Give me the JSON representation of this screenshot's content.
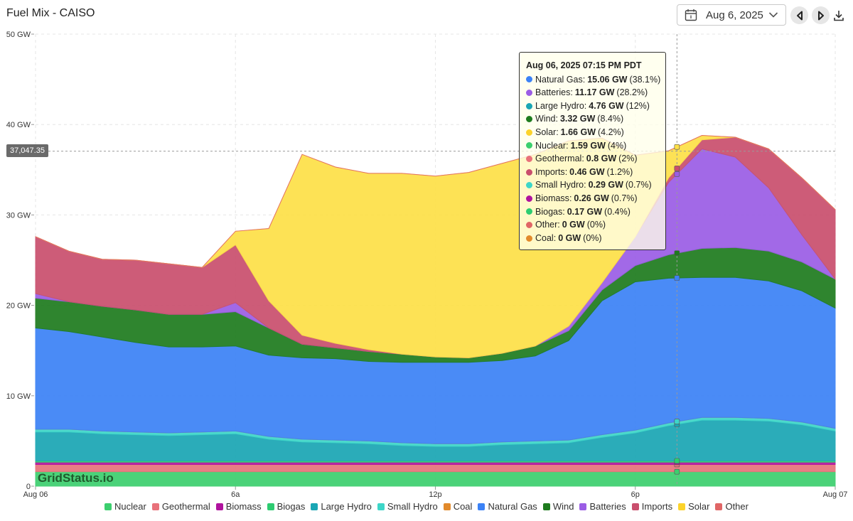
{
  "header": {
    "title": "Fuel Mix - CAISO",
    "date": "Aug 6, 2025"
  },
  "watermark": "GridStatus.io",
  "crosshair_value": "37,047.35",
  "chart_data": {
    "type": "area",
    "stacked": true,
    "title": "Fuel Mix - CAISO",
    "ylabel": "GW",
    "ylim": [
      0,
      50
    ],
    "yticks": [
      0,
      10,
      20,
      30,
      40,
      50
    ],
    "ytick_labels": [
      "0",
      "10 GW",
      "20 GW",
      "30 GW",
      "40 GW",
      "50 GW"
    ],
    "xlim": [
      0,
      24
    ],
    "xticks": [
      0,
      6,
      12,
      18,
      24
    ],
    "xtick_labels": [
      "Aug 06",
      "6a",
      "12p",
      "6p",
      "Aug 07"
    ],
    "x": [
      0,
      1,
      2,
      3,
      4,
      5,
      6,
      7,
      8,
      9,
      10,
      11,
      12,
      13,
      14,
      15,
      16,
      17,
      18,
      19,
      20,
      21,
      22,
      23,
      24
    ],
    "series": [
      {
        "name": "Nuclear",
        "color": "#3ccf6e",
        "values": [
          1.6,
          1.6,
          1.6,
          1.6,
          1.6,
          1.6,
          1.6,
          1.6,
          1.6,
          1.6,
          1.6,
          1.6,
          1.6,
          1.6,
          1.6,
          1.6,
          1.6,
          1.6,
          1.6,
          1.6,
          1.6,
          1.6,
          1.6,
          1.6,
          1.6
        ]
      },
      {
        "name": "Geothermal",
        "color": "#e8717a",
        "values": [
          0.8,
          0.8,
          0.8,
          0.8,
          0.8,
          0.8,
          0.8,
          0.8,
          0.8,
          0.8,
          0.8,
          0.8,
          0.8,
          0.8,
          0.8,
          0.8,
          0.8,
          0.8,
          0.8,
          0.8,
          0.8,
          0.8,
          0.8,
          0.8,
          0.8
        ]
      },
      {
        "name": "Biomass",
        "color": "#b0139e",
        "values": [
          0.25,
          0.25,
          0.25,
          0.25,
          0.25,
          0.25,
          0.25,
          0.25,
          0.25,
          0.25,
          0.25,
          0.25,
          0.25,
          0.25,
          0.25,
          0.25,
          0.25,
          0.25,
          0.25,
          0.25,
          0.25,
          0.25,
          0.25,
          0.25,
          0.25
        ]
      },
      {
        "name": "Biogas",
        "color": "#2ecc71",
        "values": [
          0.15,
          0.15,
          0.15,
          0.15,
          0.15,
          0.15,
          0.15,
          0.15,
          0.15,
          0.15,
          0.15,
          0.15,
          0.15,
          0.15,
          0.15,
          0.15,
          0.15,
          0.15,
          0.15,
          0.15,
          0.15,
          0.15,
          0.15,
          0.15,
          0.15
        ]
      },
      {
        "name": "Large Hydro",
        "color": "#1aa6b4",
        "values": [
          3.2,
          3.2,
          3.0,
          2.9,
          2.8,
          2.9,
          3.0,
          2.4,
          2.1,
          2.0,
          1.9,
          1.7,
          1.6,
          1.6,
          1.8,
          1.9,
          2.0,
          2.6,
          3.1,
          3.9,
          4.5,
          4.5,
          4.4,
          4.0,
          3.3
        ]
      },
      {
        "name": "Small Hydro",
        "color": "#3dd6c8",
        "values": [
          0.3,
          0.3,
          0.3,
          0.3,
          0.3,
          0.3,
          0.3,
          0.3,
          0.3,
          0.3,
          0.3,
          0.3,
          0.3,
          0.3,
          0.3,
          0.3,
          0.3,
          0.3,
          0.3,
          0.3,
          0.3,
          0.3,
          0.3,
          0.3,
          0.3
        ]
      },
      {
        "name": "Coal",
        "color": "#e28a2b",
        "values": [
          0,
          0,
          0,
          0,
          0,
          0,
          0,
          0,
          0,
          0,
          0,
          0,
          0,
          0,
          0,
          0,
          0,
          0,
          0,
          0,
          0,
          0,
          0,
          0,
          0
        ]
      },
      {
        "name": "Natural Gas",
        "color": "#3b82f6",
        "values": [
          11.2,
          10.8,
          10.4,
          9.9,
          9.5,
          9.4,
          9.4,
          9.0,
          9.0,
          9.0,
          8.8,
          8.9,
          9.0,
          9.0,
          9.0,
          9.4,
          11.0,
          14.8,
          16.4,
          16.0,
          15.5,
          15.5,
          15.2,
          14.5,
          13.3
        ]
      },
      {
        "name": "Wind",
        "color": "#1e7b1e",
        "values": [
          3.3,
          3.3,
          3.4,
          3.6,
          3.6,
          3.6,
          3.8,
          3.0,
          1.5,
          1.2,
          1.1,
          0.9,
          0.6,
          0.5,
          0.8,
          1.1,
          1.1,
          1.2,
          1.8,
          2.6,
          3.2,
          3.3,
          3.3,
          3.2,
          3.2
        ]
      },
      {
        "name": "Batteries",
        "color": "#9b5de5",
        "values": [
          0.5,
          0.0,
          0.0,
          0.0,
          0.0,
          0.0,
          1.0,
          0.0,
          0.0,
          0.0,
          0.0,
          0.0,
          0.0,
          0.0,
          0.0,
          0.0,
          0.5,
          0.8,
          3.2,
          8.0,
          11.0,
          10.0,
          7.0,
          3.0,
          0.0
        ]
      },
      {
        "name": "Imports",
        "color": "#c94f6d",
        "values": [
          6.3,
          5.6,
          5.2,
          5.5,
          5.6,
          5.2,
          6.4,
          3.0,
          1.0,
          0.5,
          0.2,
          0.0,
          0.0,
          0.0,
          0.0,
          0.0,
          0.0,
          0.0,
          0.0,
          0.5,
          1.0,
          2.2,
          4.3,
          6.3,
          7.7
        ]
      },
      {
        "name": "Solar",
        "color": "#fde047",
        "values": [
          0.0,
          0.0,
          0.0,
          0.0,
          0.0,
          0.0,
          1.5,
          8.0,
          20.0,
          19.5,
          19.5,
          20.0,
          20.0,
          20.5,
          21.0,
          21.2,
          20.5,
          16.0,
          9.0,
          3.0,
          0.5,
          0.0,
          0.0,
          0.0,
          0.0
        ]
      },
      {
        "name": "Other",
        "color": "#e06666",
        "values": [
          0,
          0,
          0,
          0,
          0,
          0,
          0,
          0,
          0,
          0,
          0,
          0,
          0,
          0,
          0,
          0,
          0,
          0,
          0,
          0,
          0,
          0,
          0,
          0,
          0
        ]
      }
    ],
    "crosshair_x": 19.25,
    "crosshair_y": 37.05
  },
  "tooltip": {
    "title": "Aug 06, 2025 07:15 PM PDT",
    "rows": [
      {
        "name": "Natural Gas",
        "value": "15.06 GW",
        "pct": "(38.1%)",
        "color": "#3b82f6"
      },
      {
        "name": "Batteries",
        "value": "11.17 GW",
        "pct": "(28.2%)",
        "color": "#9b5de5"
      },
      {
        "name": "Large Hydro",
        "value": "4.76 GW",
        "pct": "(12%)",
        "color": "#1aa6b4"
      },
      {
        "name": "Wind",
        "value": "3.32 GW",
        "pct": "(8.4%)",
        "color": "#1e7b1e"
      },
      {
        "name": "Solar",
        "value": "1.66 GW",
        "pct": "(4.2%)",
        "color": "#fcd32b"
      },
      {
        "name": "Nuclear",
        "value": "1.59 GW",
        "pct": "(4%)",
        "color": "#3ccf6e"
      },
      {
        "name": "Geothermal",
        "value": "0.8 GW",
        "pct": "(2%)",
        "color": "#e8717a"
      },
      {
        "name": "Imports",
        "value": "0.46 GW",
        "pct": "(1.2%)",
        "color": "#c94f6d"
      },
      {
        "name": "Small Hydro",
        "value": "0.29 GW",
        "pct": "(0.7%)",
        "color": "#3dd6c8"
      },
      {
        "name": "Biomass",
        "value": "0.26 GW",
        "pct": "(0.7%)",
        "color": "#b0139e"
      },
      {
        "name": "Biogas",
        "value": "0.17 GW",
        "pct": "(0.4%)",
        "color": "#2ecc71"
      },
      {
        "name": "Other",
        "value": "0 GW",
        "pct": "(0%)",
        "color": "#e06666"
      },
      {
        "name": "Coal",
        "value": "0 GW",
        "pct": "(0%)",
        "color": "#e28a2b"
      }
    ]
  },
  "legend": [
    {
      "name": "Nuclear",
      "color": "#3ccf6e"
    },
    {
      "name": "Geothermal",
      "color": "#e8717a"
    },
    {
      "name": "Biomass",
      "color": "#b0139e"
    },
    {
      "name": "Biogas",
      "color": "#2ecc71"
    },
    {
      "name": "Large Hydro",
      "color": "#1aa6b4"
    },
    {
      "name": "Small Hydro",
      "color": "#3dd6c8"
    },
    {
      "name": "Coal",
      "color": "#e28a2b"
    },
    {
      "name": "Natural Gas",
      "color": "#3b82f6"
    },
    {
      "name": "Wind",
      "color": "#1e7b1e"
    },
    {
      "name": "Batteries",
      "color": "#9b5de5"
    },
    {
      "name": "Imports",
      "color": "#c94f6d"
    },
    {
      "name": "Solar",
      "color": "#fcd32b"
    },
    {
      "name": "Other",
      "color": "#e06666"
    }
  ]
}
